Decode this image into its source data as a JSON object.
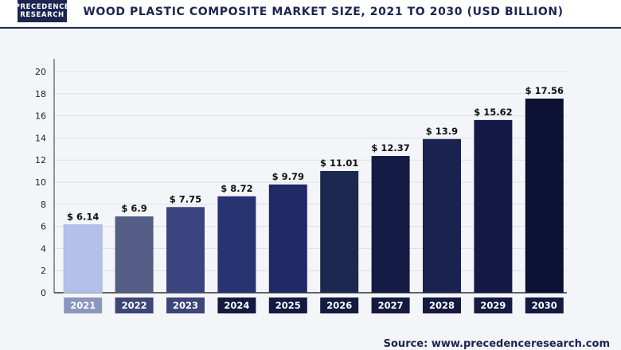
{
  "logo": {
    "line1": "PRECEDENCE",
    "line2": "RESEARCH"
  },
  "source_text": "Source: www.precedenceresearch.com",
  "chart_data": {
    "type": "bar",
    "title": "WOOD PLASTIC COMPOSITE MARKET SIZE, 2021 TO 2030 (USD BILLION)",
    "xlabel": "",
    "ylabel": "",
    "categories": [
      "2021",
      "2022",
      "2023",
      "2024",
      "2025",
      "2026",
      "2027",
      "2028",
      "2029",
      "2030"
    ],
    "values": [
      6.14,
      6.9,
      7.75,
      8.72,
      9.79,
      11.01,
      12.37,
      13.9,
      15.62,
      17.56
    ],
    "value_labels": [
      "$ 6.14",
      "$ 6.9",
      "$ 7.75",
      "$ 8.72",
      "$ 9.79",
      "$ 11.01",
      "$ 12.37",
      "$ 13.9",
      "$ 15.62",
      "$ 17.56"
    ],
    "yticks": [
      0,
      2,
      4,
      6,
      8,
      10,
      12,
      14,
      16,
      18,
      20
    ],
    "ylim": [
      0,
      20
    ],
    "grid": true,
    "legend": "none",
    "bar_colors": [
      "#b3c0ea",
      "#535d85",
      "#3a4580",
      "#283372",
      "#1f2966",
      "#1d2850",
      "#141b44",
      "#1a2350",
      "#141a45",
      "#0c1133"
    ],
    "label_bg_color": "#8b96bf",
    "label_bg_color_dark": "#141a40"
  }
}
